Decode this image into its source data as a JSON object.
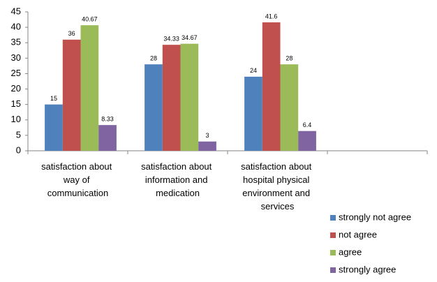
{
  "chart_data": {
    "type": "bar",
    "categories": [
      "satisfaction about way of communication",
      "satisfaction about information and medication",
      "satisfaction about hospital physical environment and services",
      null
    ],
    "series": [
      {
        "name": "strongly not agree",
        "color": "#4f81bd",
        "values": [
          15,
          28,
          24,
          null
        ]
      },
      {
        "name": "not agree",
        "color": "#c0504d",
        "values": [
          36,
          34.33,
          41.6,
          null
        ]
      },
      {
        "name": "agree",
        "color": "#9bbb59",
        "values": [
          40.67,
          34.67,
          28,
          null
        ]
      },
      {
        "name": "strongly agree",
        "color": "#8064a2",
        "values": [
          8.33,
          3,
          6.4,
          null
        ]
      }
    ],
    "ylim": [
      0,
      45
    ],
    "yticks": [
      0,
      5,
      10,
      15,
      20,
      25,
      30,
      35,
      40,
      45
    ],
    "grid": false,
    "legend": "lower right"
  }
}
